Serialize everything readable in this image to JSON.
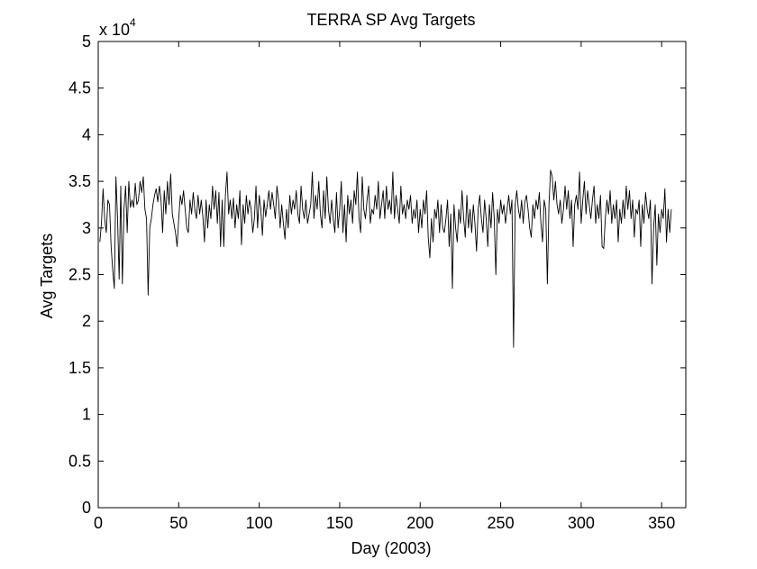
{
  "chart_data": {
    "type": "line",
    "title": "TERRA SP Avg Targets",
    "xlabel": "Day (2003)",
    "ylabel": "Avg Targets",
    "y_multiplier_label": "x 10",
    "y_multiplier_exponent": "4",
    "xlim": [
      0,
      365
    ],
    "ylim": [
      0,
      5
    ],
    "xticks": [
      0,
      50,
      100,
      150,
      200,
      250,
      300,
      350
    ],
    "yticks": [
      0,
      0.5,
      1,
      1.5,
      2,
      2.5,
      3,
      3.5,
      4,
      4.5,
      5
    ],
    "ytick_labels": [
      "0",
      "0.5",
      "1",
      "1.5",
      "2",
      "2.5",
      "3",
      "3.5",
      "4",
      "4.5",
      "5"
    ],
    "grid": false,
    "line_color": "#000000",
    "series": [
      {
        "x_start": 1,
        "x_step": 1,
        "values": [
          2.85,
          3.05,
          3.42,
          3.1,
          2.95,
          3.3,
          3.25,
          2.8,
          2.55,
          2.35,
          3.55,
          3.1,
          2.45,
          3.45,
          2.4,
          3.2,
          3.45,
          2.95,
          3.5,
          3.22,
          3.3,
          3.22,
          3.48,
          3.25,
          3.3,
          3.5,
          3.38,
          3.55,
          3.2,
          3.1,
          2.28,
          3.0,
          3.1,
          3.25,
          3.35,
          3.42,
          3.28,
          3.45,
          3.3,
          2.95,
          3.4,
          3.15,
          3.5,
          3.25,
          3.58,
          3.15,
          3.05,
          2.95,
          2.8,
          3.1,
          3.35,
          3.25,
          3.4,
          3.2,
          3.0,
          2.95,
          3.3,
          3.15,
          3.38,
          3.2,
          3.1,
          3.35,
          3.15,
          3.3,
          3.12,
          2.85,
          3.3,
          3.0,
          3.25,
          3.1,
          3.45,
          3.2,
          3.4,
          3.05,
          3.38,
          2.8,
          3.3,
          2.8,
          3.35,
          3.6,
          3.15,
          3.3,
          3.1,
          3.32,
          3.0,
          3.25,
          3.1,
          3.4,
          2.82,
          3.25,
          3.05,
          3.35,
          3.15,
          3.3,
          3.2,
          2.95,
          3.1,
          3.45,
          3.0,
          3.35,
          3.2,
          2.92,
          3.3,
          3.12,
          3.25,
          3.4,
          3.2,
          3.38,
          3.25,
          3.1,
          3.45,
          3.3,
          3.0,
          3.25,
          3.05,
          2.88,
          3.2,
          3.0,
          3.35,
          3.15,
          3.3,
          3.2,
          3.4,
          3.15,
          3.05,
          3.45,
          3.2,
          3.1,
          3.3,
          3.05,
          3.15,
          3.25,
          3.6,
          3.1,
          3.35,
          3.2,
          3.5,
          3.15,
          3.0,
          3.4,
          3.1,
          3.55,
          3.2,
          3.05,
          3.3,
          3.1,
          2.95,
          3.38,
          3.0,
          3.2,
          3.5,
          2.95,
          3.25,
          2.85,
          3.35,
          3.15,
          3.3,
          3.05,
          3.4,
          3.25,
          3.6,
          3.1,
          2.95,
          3.55,
          3.2,
          3.1,
          3.3,
          3.45,
          3.05,
          3.2,
          3.15,
          3.35,
          3.2,
          3.5,
          3.1,
          3.25,
          3.4,
          3.1,
          3.45,
          3.2,
          3.3,
          3.15,
          3.6,
          3.1,
          3.35,
          3.2,
          3.05,
          3.45,
          3.15,
          3.25,
          3.1,
          3.3,
          3.2,
          3.35,
          3.05,
          3.2,
          3.1,
          3.3,
          2.95,
          3.2,
          3.0,
          3.3,
          3.15,
          3.4,
          2.9,
          2.68,
          3.1,
          2.85,
          3.2,
          3.1,
          3.3,
          2.95,
          3.25,
          3.0,
          2.95,
          3.1,
          3.3,
          2.8,
          3.15,
          2.35,
          3.25,
          3.0,
          2.85,
          3.2,
          3.05,
          3.4,
          3.1,
          2.9,
          3.35,
          3.0,
          3.2,
          2.95,
          3.25,
          3.05,
          2.75,
          3.2,
          3.35,
          3.1,
          2.95,
          3.3,
          3.1,
          2.8,
          3.25,
          3.0,
          3.38,
          3.1,
          2.5,
          3.2,
          3.05,
          3.3,
          3.15,
          3.25,
          3.05,
          3.2,
          3.35,
          3.15,
          3.3,
          1.72,
          3.25,
          3.4,
          3.2,
          3.1,
          3.3,
          3.05,
          3.28,
          3.35,
          3.2,
          3.0,
          2.9,
          3.25,
          3.1,
          3.3,
          3.2,
          3.38,
          3.05,
          2.85,
          3.3,
          3.2,
          2.4,
          3.25,
          3.62,
          3.55,
          3.3,
          3.5,
          3.25,
          3.15,
          3.3,
          3.05,
          3.2,
          3.45,
          3.2,
          3.4,
          3.1,
          3.3,
          2.8,
          3.25,
          3.35,
          3.2,
          3.6,
          3.05,
          3.3,
          3.5,
          3.15,
          3.4,
          3.25,
          3.1,
          3.3,
          3.45,
          3.05,
          3.25,
          3.1,
          3.35,
          2.8,
          2.78,
          3.1,
          3.3,
          3.15,
          3.4,
          3.05,
          3.25,
          3.1,
          3.3,
          2.85,
          3.2,
          3.05,
          3.3,
          3.1,
          3.45,
          3.2,
          3.4,
          3.1,
          3.3,
          2.9,
          3.2,
          3.15,
          3.3,
          2.8,
          3.25,
          3.05,
          3.38,
          3.2,
          3.1,
          3.3,
          2.4,
          3.0,
          3.25,
          2.6,
          3.15,
          2.95,
          3.2,
          3.1,
          3.42,
          2.85,
          3.2,
          2.95,
          3.2
        ]
      }
    ]
  }
}
